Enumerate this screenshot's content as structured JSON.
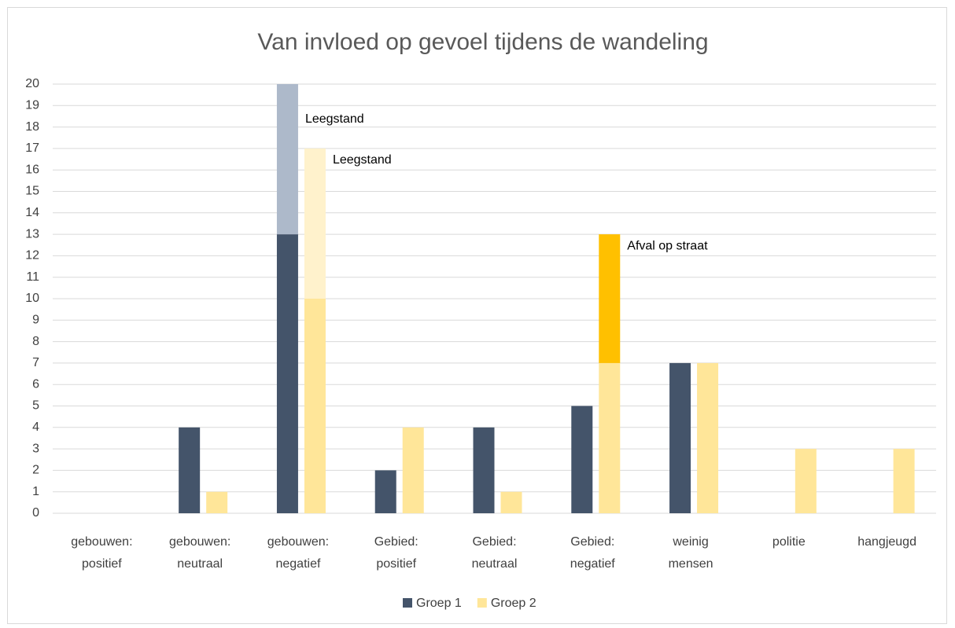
{
  "chart_data": {
    "type": "bar",
    "title": "Van invloed op gevoel tijdens de wandeling",
    "categories": [
      "gebouwen: positief",
      "gebouwen: neutraal",
      "gebouwen: negatief",
      "Gebied: positief",
      "Gebied: neutraal",
      "Gebied: negatief",
      "weinig mensen",
      "politie",
      "hangjeugd"
    ],
    "series": [
      {
        "name": "Groep 1",
        "color": "#44546a",
        "values": [
          0,
          4,
          13,
          2,
          4,
          5,
          7,
          0,
          0
        ],
        "segments": [
          {
            "label": "Leegstand",
            "color": "#adb9ca",
            "values": [
              null,
              null,
              7,
              null,
              null,
              null,
              null,
              null,
              null
            ]
          }
        ]
      },
      {
        "name": "Groep 2",
        "color": "#ffe699",
        "values": [
          0,
          1,
          10,
          4,
          1,
          7,
          7,
          3,
          3
        ],
        "segments": [
          {
            "label": "Leegstand",
            "color": "#fff2cc",
            "values": [
              null,
              null,
              7,
              null,
              null,
              null,
              null,
              null,
              null
            ]
          },
          {
            "label": "Afval op straat",
            "color": "#ffc000",
            "values": [
              null,
              null,
              null,
              null,
              null,
              6,
              null,
              null,
              null
            ]
          }
        ]
      }
    ],
    "ylim": [
      0,
      20
    ],
    "yticks": [
      0,
      1,
      2,
      3,
      4,
      5,
      6,
      7,
      8,
      9,
      10,
      11,
      12,
      13,
      14,
      15,
      16,
      17,
      18,
      19,
      20
    ],
    "grid": true,
    "legend": "bottom"
  }
}
